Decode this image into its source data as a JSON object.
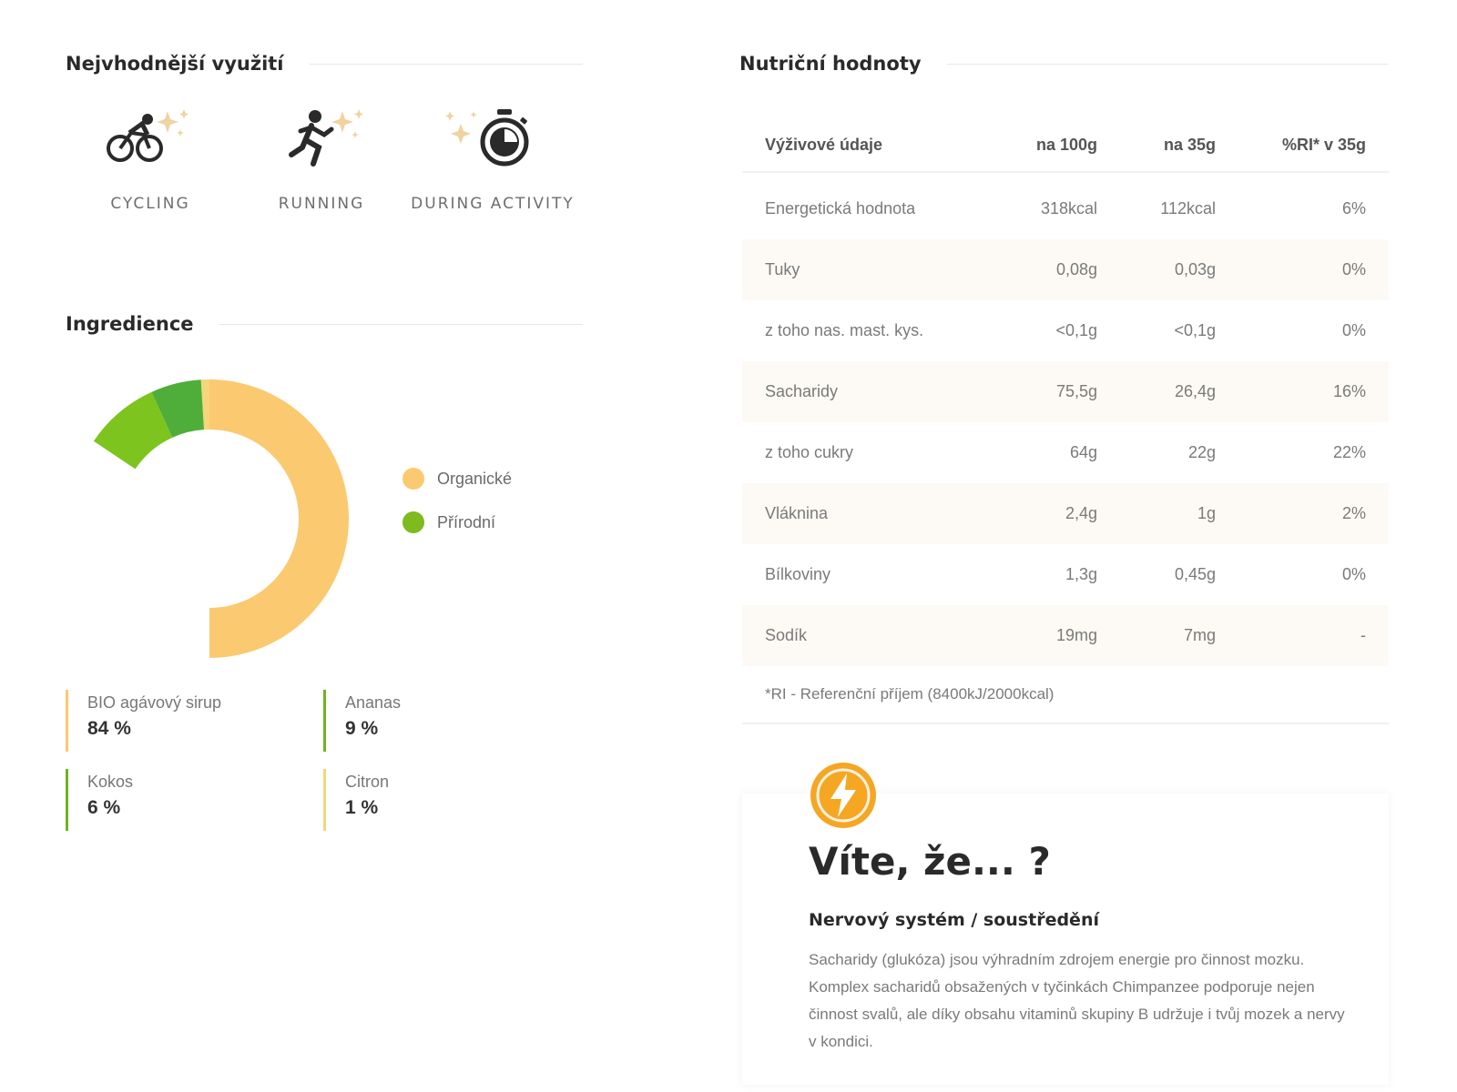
{
  "usage": {
    "title": "Nejvhodnější využití",
    "items": [
      {
        "label": "CYCLING",
        "icon": "cycling-icon"
      },
      {
        "label": "RUNNING",
        "icon": "running-icon"
      },
      {
        "label": "DURING ACTIVITY",
        "icon": "stopwatch-icon"
      }
    ]
  },
  "ingredients": {
    "title": "Ingredience",
    "legend": [
      {
        "label": "Organické",
        "color": "#fbc970"
      },
      {
        "label": "Přírodní",
        "color": "#7dbb1e"
      }
    ],
    "items": [
      {
        "name": "BIO agávový sirup",
        "pct": "84 %",
        "color": "#fbc970"
      },
      {
        "name": "Ananas",
        "pct": "9 %",
        "color": "#6fb41e"
      },
      {
        "name": "Kokos",
        "pct": "6 %",
        "color": "#6fb41e"
      },
      {
        "name": "Citron",
        "pct": "1 %",
        "color": "#f2d77a"
      }
    ]
  },
  "chart_data": {
    "type": "pie",
    "categories": [
      "BIO agávový sirup",
      "Ananas",
      "Kokos",
      "Citron"
    ],
    "values": [
      84,
      9,
      6,
      1
    ],
    "colors": [
      "#fbc970",
      "#7dc41e",
      "#4fae3a",
      "#f5d67a"
    ],
    "legend": [
      "Organické",
      "Přírodní"
    ]
  },
  "nutrition": {
    "title": "Nutriční hodnoty",
    "headers": [
      "Výživové údaje",
      "na 100g",
      "na 35g",
      "%RI* v 35g"
    ],
    "rows": [
      [
        "Energetická hodnota",
        "318kcal",
        "112kcal",
        "6%"
      ],
      [
        "Tuky",
        "0,08g",
        "0,03g",
        "0%"
      ],
      [
        "z toho nas. mast. kys.",
        "<0,1g",
        "<0,1g",
        "0%"
      ],
      [
        "Sacharidy",
        "75,5g",
        "26,4g",
        "16%"
      ],
      [
        "z toho cukry",
        "64g",
        "22g",
        "22%"
      ],
      [
        "Vláknina",
        "2,4g",
        "1g",
        "2%"
      ],
      [
        "Bílkoviny",
        "1,3g",
        "0,45g",
        "0%"
      ],
      [
        "Sodík",
        "19mg",
        "7mg",
        "-"
      ]
    ],
    "note": "*RI - Referenční příjem (8400kJ/2000kcal)"
  },
  "did_you_know": {
    "title": "Víte, že... ?",
    "subtitle": "Nervový systém / soustředění",
    "text": "Sacharidy (glukóza) jsou výhradním zdrojem energie pro činnost mozku. Komplex sacharidů obsažených v tyčinkách Chimpanzee podporuje nejen činnost svalů, ale díky obsahu vitaminů skupiny B udržuje i tvůj mozek a nervy v kondici.",
    "icon": "lightning-icon",
    "icon_color": "#f5a623"
  }
}
